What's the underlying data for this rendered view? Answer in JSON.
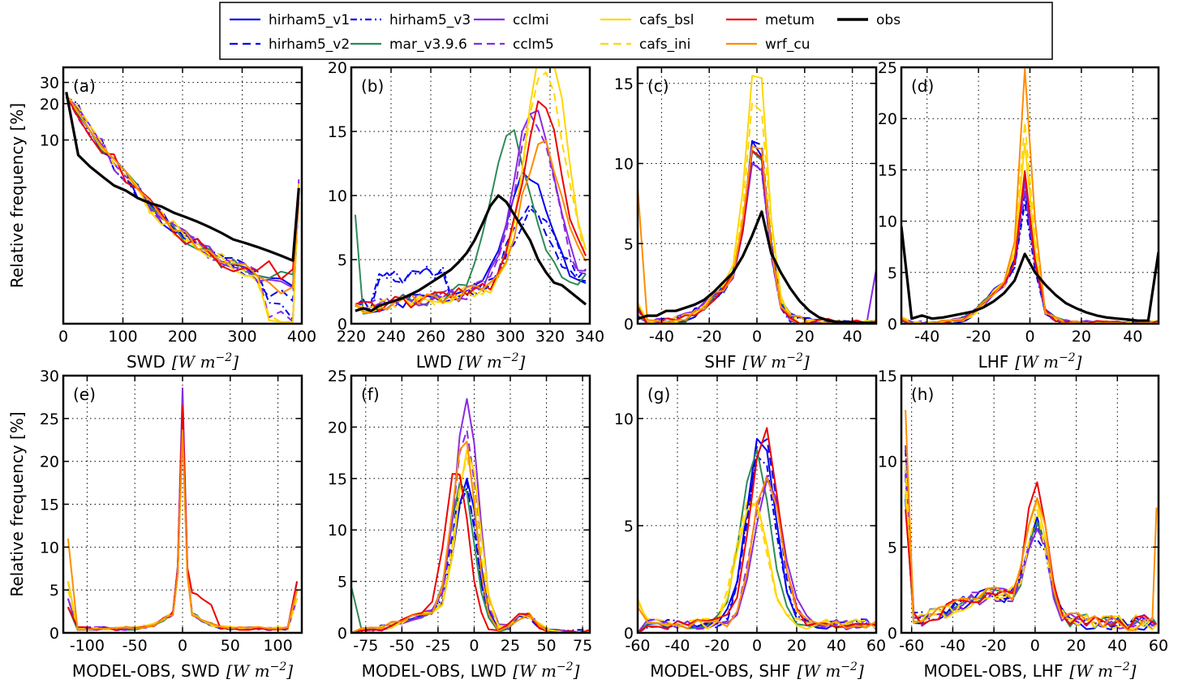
{
  "legend": {
    "entries": [
      {
        "name": "hirham5_v1",
        "color": "#0000ee",
        "dash": "solid",
        "width": 2.2
      },
      {
        "name": "hirham5_v2",
        "color": "#0000ee",
        "dash": "dash",
        "width": 2.2
      },
      {
        "name": "hirham5_v3",
        "color": "#0000ee",
        "dash": "dashdot",
        "width": 2.2
      },
      {
        "name": "mar_v3.9.6",
        "color": "#2e8b57",
        "dash": "solid",
        "width": 2.2
      },
      {
        "name": "cclmi",
        "color": "#8a2be2",
        "dash": "solid",
        "width": 2.2
      },
      {
        "name": "cclm5",
        "color": "#8a2be2",
        "dash": "dash",
        "width": 2.2
      },
      {
        "name": "cafs_bsl",
        "color": "#ffd700",
        "dash": "solid",
        "width": 2.2
      },
      {
        "name": "cafs_ini",
        "color": "#ffd700",
        "dash": "dash",
        "width": 2.2
      },
      {
        "name": "metum",
        "color": "#ee0000",
        "dash": "solid",
        "width": 2.2
      },
      {
        "name": "wrf_cu",
        "color": "#ff8c00",
        "dash": "solid",
        "width": 2.2
      },
      {
        "name": "obs",
        "color": "#000000",
        "dash": "solid",
        "width": 3.4
      }
    ]
  },
  "chart_data": [
    {
      "panel": "(a)",
      "type": "line",
      "scale": "log",
      "xlabel": "SWD",
      "xunit": "[W m^{-2}]",
      "ylabel": "Relative frequency [%]",
      "xlim": [
        0,
        400
      ],
      "ylim": [
        0.3,
        40
      ],
      "xticks": [
        0,
        100,
        200,
        300,
        400
      ],
      "xtick_labels": [
        "0",
        "100",
        "200",
        "300",
        "400"
      ],
      "yticks": [
        10,
        20,
        30
      ],
      "ytick_labels": [
        "10",
        "20",
        "30"
      ],
      "grid": true,
      "outlier_series": "cafs_bsl",
      "x": [
        5,
        25,
        45,
        65,
        85,
        105,
        125,
        145,
        165,
        185,
        205,
        225,
        245,
        265,
        285,
        305,
        325,
        345,
        365,
        385,
        395
      ],
      "obs": [
        25,
        7.5,
        6,
        5,
        4.2,
        3.8,
        3.3,
        3,
        2.8,
        2.5,
        2.3,
        2.1,
        1.9,
        1.7,
        1.5,
        1.4,
        1.3,
        1.2,
        1.1,
        1.0,
        4
      ]
    },
    {
      "panel": "(b)",
      "type": "line",
      "xlabel": "LWD",
      "xunit": "[W m^{-2}]",
      "ylabel": "",
      "xlim": [
        220,
        340
      ],
      "ylim": [
        0,
        20
      ],
      "xticks": [
        220,
        240,
        260,
        280,
        300,
        320,
        340
      ],
      "xtick_labels": [
        "220",
        "240",
        "260",
        "280",
        "300",
        "320",
        "340"
      ],
      "yticks": [
        0,
        5,
        10,
        15,
        20
      ],
      "ytick_labels": [
        "0",
        "5",
        "10",
        "15",
        "20"
      ],
      "grid": true,
      "outlier_series": "cafs_bsl",
      "x": [
        222,
        226,
        230,
        234,
        238,
        242,
        246,
        250,
        254,
        258,
        262,
        266,
        270,
        274,
        278,
        282,
        286,
        290,
        294,
        298,
        302,
        306,
        310,
        314,
        318,
        322,
        326,
        330,
        334,
        338
      ],
      "obs": [
        1.0,
        1.2,
        1.0,
        1.4,
        1.6,
        1.8,
        2.0,
        2.3,
        2.6,
        3.0,
        3.4,
        3.8,
        4.2,
        4.8,
        5.5,
        6.5,
        7.8,
        9.2,
        10.0,
        9.5,
        8.5,
        7.5,
        6.5,
        5.0,
        4.0,
        3.2,
        3.0,
        2.5,
        2.0,
        1.5
      ]
    },
    {
      "panel": "(c)",
      "type": "line",
      "xlabel": "SHF",
      "xunit": "[W m^{-2}]",
      "ylabel": "",
      "xlim": [
        -50,
        50
      ],
      "ylim": [
        0,
        16
      ],
      "xticks": [
        -40,
        -20,
        0,
        20,
        40
      ],
      "xtick_labels": [
        "-40",
        "-20",
        "0",
        "20",
        "40"
      ],
      "yticks": [
        0,
        5,
        10,
        15
      ],
      "ytick_labels": [
        "0",
        "5",
        "10",
        "15"
      ],
      "grid": true,
      "outlier_series": "cafs_bsl",
      "x": [
        -50,
        -46,
        -42,
        -38,
        -34,
        -30,
        -26,
        -22,
        -18,
        -14,
        -10,
        -6,
        -2,
        2,
        6,
        10,
        14,
        18,
        22,
        26,
        30,
        34,
        38,
        42,
        46,
        50
      ],
      "obs": [
        0.3,
        0.5,
        0.5,
        0.8,
        0.8,
        1.0,
        1.2,
        1.5,
        2.0,
        2.6,
        3.2,
        4.2,
        5.5,
        7.0,
        4.4,
        3.2,
        2.2,
        1.4,
        0.8,
        0.4,
        0.2,
        0.1,
        0.1,
        0.05,
        0.05,
        0.05
      ]
    },
    {
      "panel": "(d)",
      "type": "line",
      "xlabel": "LHF",
      "xunit": "[W m^{-2}]",
      "ylabel": "",
      "xlim": [
        -50,
        50
      ],
      "ylim": [
        0,
        25
      ],
      "xticks": [
        -40,
        -20,
        0,
        20,
        40
      ],
      "xtick_labels": [
        "-40",
        "-20",
        "0",
        "20",
        "40"
      ],
      "yticks": [
        0,
        5,
        10,
        15,
        20,
        25
      ],
      "ytick_labels": [
        "0",
        "5",
        "10",
        "15",
        "20",
        "25"
      ],
      "grid": true,
      "outlier_series": "cafs_bsl",
      "x": [
        -50,
        -46,
        -42,
        -38,
        -34,
        -30,
        -26,
        -22,
        -18,
        -14,
        -10,
        -6,
        -2,
        2,
        6,
        10,
        14,
        18,
        22,
        26,
        30,
        34,
        38,
        42,
        46,
        50
      ],
      "obs": [
        9.5,
        0.5,
        0.8,
        0.5,
        0.6,
        0.8,
        1.0,
        1.2,
        1.6,
        2.2,
        3.0,
        4.2,
        6.8,
        5.0,
        3.8,
        2.8,
        2.0,
        1.5,
        1.1,
        0.8,
        0.6,
        0.5,
        0.4,
        0.3,
        0.3,
        7.0
      ]
    },
    {
      "panel": "(e)",
      "type": "line",
      "xlabel": "MODEL-OBS, SWD",
      "xunit": "[W m^{-2}]",
      "ylabel": "Relative frequency [%]",
      "xlim": [
        -125,
        125
      ],
      "ylim": [
        0,
        30
      ],
      "xticks": [
        -100,
        -50,
        0,
        50,
        100
      ],
      "xtick_labels": [
        "-100",
        "-50",
        "0",
        "50",
        "100"
      ],
      "yticks": [
        0,
        5,
        10,
        15,
        20,
        25,
        30
      ],
      "ytick_labels": [
        "0",
        "5",
        "10",
        "15",
        "20",
        "25",
        "30"
      ],
      "grid": true,
      "outlier_series": "cafs_bsl",
      "x": [
        -120,
        -110,
        -100,
        -90,
        -80,
        -70,
        -60,
        -50,
        -40,
        -30,
        -20,
        -15,
        -10,
        -5,
        0,
        5,
        10,
        15,
        20,
        30,
        40,
        50,
        60,
        70,
        80,
        90,
        100,
        110,
        120
      ],
      "obs": []
    },
    {
      "panel": "(f)",
      "type": "line",
      "xlabel": "MODEL-OBS, LWD",
      "xunit": "[W m^{-2}]",
      "ylabel": "",
      "xlim": [
        -85,
        80
      ],
      "ylim": [
        0,
        25
      ],
      "xticks": [
        -75,
        -50,
        -25,
        0,
        25,
        50,
        75
      ],
      "xtick_labels": [
        "-75",
        "-50",
        "-25",
        "0",
        "25",
        "50",
        "75"
      ],
      "yticks": [
        0,
        5,
        10,
        15,
        20,
        25
      ],
      "ytick_labels": [
        "0",
        "5",
        "10",
        "15",
        "20",
        "25"
      ],
      "grid": true,
      "outlier_series": "cafs_bsl",
      "x": [
        -85,
        -78,
        -71,
        -64,
        -57,
        -50,
        -43,
        -36,
        -29,
        -22,
        -15,
        -10,
        -5,
        0,
        5,
        10,
        17,
        24,
        31,
        38,
        45,
        52,
        59,
        66,
        73,
        80
      ],
      "obs": []
    },
    {
      "panel": "(g)",
      "type": "line",
      "xlabel": "MODEL-OBS, SHF",
      "xunit": "[W m^{-2}]",
      "ylabel": "",
      "xlim": [
        -60,
        60
      ],
      "ylim": [
        0,
        12
      ],
      "xticks": [
        -60,
        -40,
        -20,
        0,
        20,
        40,
        60
      ],
      "xtick_labels": [
        "-60",
        "-40",
        "-20",
        "0",
        "20",
        "40",
        "60"
      ],
      "yticks": [
        0,
        5,
        10
      ],
      "ytick_labels": [
        "0",
        "5",
        "10"
      ],
      "grid": true,
      "outlier_series": "cafs_bsl",
      "x": [
        -60,
        -55,
        -50,
        -45,
        -40,
        -35,
        -30,
        -25,
        -20,
        -15,
        -10,
        -5,
        0,
        5,
        10,
        15,
        20,
        25,
        30,
        35,
        40,
        45,
        50,
        55,
        60
      ],
      "obs": []
    },
    {
      "panel": "(h)",
      "type": "line",
      "xlabel": "MODEL-OBS, LHF",
      "xunit": "[W m^{-2}]",
      "ylabel": "",
      "xlim": [
        -65,
        60
      ],
      "ylim": [
        0,
        15
      ],
      "xticks": [
        -60,
        -40,
        -20,
        0,
        20,
        40,
        60
      ],
      "xtick_labels": [
        "-60",
        "-40",
        "-20",
        "0",
        "20",
        "40",
        "60"
      ],
      "yticks": [
        0,
        5,
        10,
        15
      ],
      "ytick_labels": [
        "0",
        "5",
        "10",
        "15"
      ],
      "grid": true,
      "outlier_series": "cafs_bsl",
      "x": [
        -63,
        -59,
        -55,
        -51,
        -47,
        -43,
        -39,
        -35,
        -31,
        -27,
        -23,
        -19,
        -15,
        -11,
        -7,
        -3,
        1,
        5,
        9,
        13,
        17,
        21,
        25,
        29,
        33,
        37,
        41,
        45,
        49,
        53,
        57,
        59
      ],
      "obs": []
    }
  ]
}
